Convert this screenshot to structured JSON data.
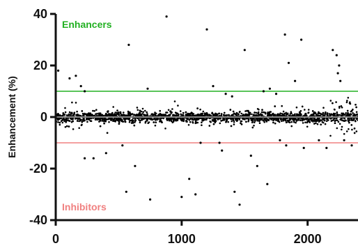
{
  "chart_data": {
    "type": "scatter",
    "ylabel": "Enhancement (%)",
    "xlabel": "",
    "xlim": [
      0,
      2400
    ],
    "ylim": [
      -40,
      40
    ],
    "xticks": [
      0,
      1000,
      2000
    ],
    "yticks": [
      -40,
      -20,
      0,
      20,
      40
    ],
    "grid": false,
    "thresholds": [
      {
        "label": "Enhancers",
        "value": 10,
        "color": "#22b022"
      },
      {
        "label": "Inhibitors",
        "value": -10,
        "color": "#f08080"
      }
    ],
    "zero_line": {
      "value": 0,
      "color": "#888888"
    },
    "point_color": "#000000",
    "n_points_approx": 2400,
    "outliers": [
      [
        20,
        18
      ],
      [
        110,
        15
      ],
      [
        160,
        16
      ],
      [
        200,
        12
      ],
      [
        230,
        10
      ],
      [
        580,
        28
      ],
      [
        880,
        39
      ],
      [
        1200,
        34
      ],
      [
        1500,
        26
      ],
      [
        1820,
        32
      ],
      [
        1850,
        21
      ],
      [
        1900,
        14
      ],
      [
        1950,
        30
      ],
      [
        2200,
        26
      ],
      [
        2230,
        24
      ],
      [
        2250,
        20
      ],
      [
        2240,
        17
      ],
      [
        2260,
        14
      ],
      [
        730,
        11
      ],
      [
        1250,
        12
      ],
      [
        1350,
        9
      ],
      [
        1400,
        8
      ],
      [
        1650,
        10
      ],
      [
        1700,
        11
      ],
      [
        1750,
        9
      ],
      [
        230,
        -16
      ],
      [
        300,
        -16
      ],
      [
        400,
        -14
      ],
      [
        530,
        -11
      ],
      [
        560,
        -29
      ],
      [
        630,
        -19
      ],
      [
        750,
        -32
      ],
      [
        1000,
        -31
      ],
      [
        1060,
        -24
      ],
      [
        1110,
        -30
      ],
      [
        1150,
        -10
      ],
      [
        1300,
        -10
      ],
      [
        1320,
        -13
      ],
      [
        1420,
        -29
      ],
      [
        1460,
        -34
      ],
      [
        1550,
        -15
      ],
      [
        1600,
        -19
      ],
      [
        1680,
        -26
      ],
      [
        1780,
        -9
      ],
      [
        1830,
        -11
      ],
      [
        1970,
        -12
      ],
      [
        2090,
        -9
      ],
      [
        2150,
        -12
      ],
      [
        2290,
        -9
      ],
      [
        2350,
        -11
      ]
    ]
  }
}
